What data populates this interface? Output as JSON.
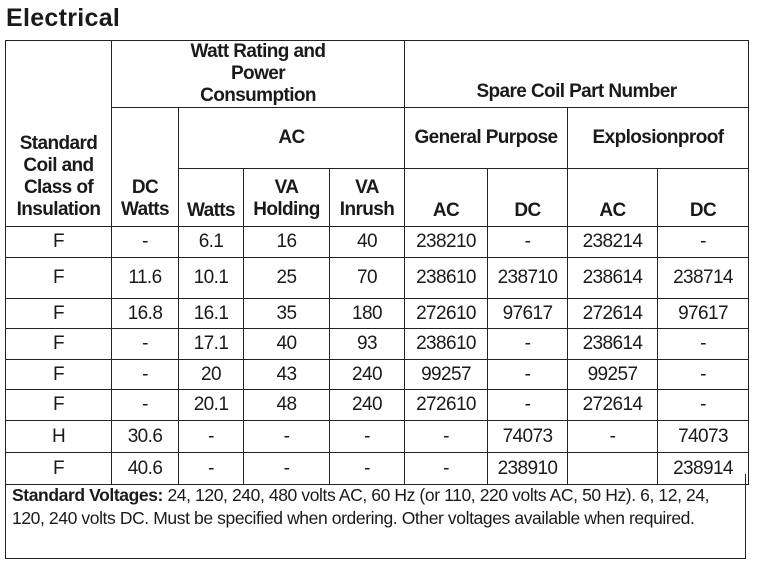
{
  "title": "Electrical",
  "headers": {
    "coil_class": "Standard Coil and Class of Insulation",
    "watt_group": "Watt Rating and Power Consumption",
    "spare_group": "Spare Coil Part Number",
    "dc_watts": "DC Watts",
    "ac": "AC",
    "general_purpose": "General Purpose",
    "explosionproof": "Explosionproof",
    "watts": "Watts",
    "va_holding": "VA Holding",
    "va_inrush": "VA Inrush",
    "gp_ac": "AC",
    "gp_dc": "DC",
    "ep_ac": "AC",
    "ep_dc": "DC"
  },
  "rows": [
    [
      "F",
      "-",
      "6.1",
      "16",
      "40",
      "238210",
      "-",
      "238214",
      "-"
    ],
    [
      "F",
      "11.6",
      "10.1",
      "25",
      "70",
      "238610",
      "238710",
      "238614",
      "238714"
    ],
    [
      "F",
      "16.8",
      "16.1",
      "35",
      "180",
      "272610",
      "97617",
      "272614",
      "97617"
    ],
    [
      "F",
      "-",
      "17.1",
      "40",
      "93",
      "238610",
      "-",
      "238614",
      "-"
    ],
    [
      "F",
      "-",
      "20",
      "43",
      "240",
      "99257",
      "-",
      "99257",
      "-"
    ],
    [
      "F",
      "-",
      "20.1",
      "48",
      "240",
      "272610",
      "-",
      "272614",
      "-"
    ],
    [
      "H",
      "30.6",
      "-",
      "-",
      "-",
      "-",
      "74073",
      "-",
      "74073"
    ],
    [
      "F",
      "40.6",
      "-",
      "-",
      "-",
      "-",
      "238910",
      "",
      "238914"
    ]
  ],
  "footer": {
    "label": "Standard Voltages:",
    "text": " 24, 120, 240, 480 volts AC, 60 Hz (or 110, 220 volts AC, 50 Hz). 6, 12, 24, 120, 240 volts DC. Must be specified when ordering. Other voltages available when required."
  }
}
